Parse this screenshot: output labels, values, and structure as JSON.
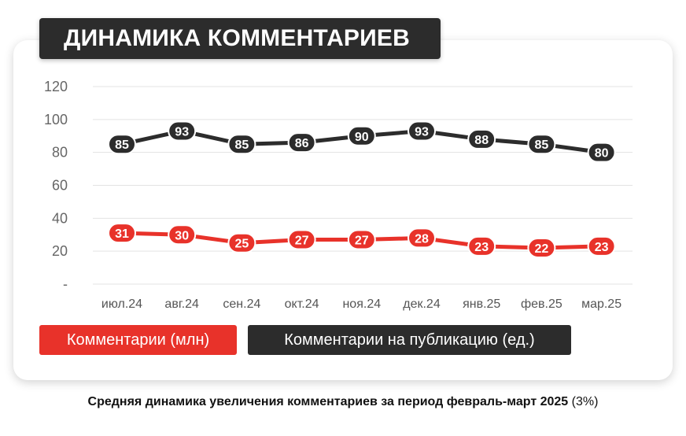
{
  "title": "ДИНАМИКА КОММЕНТАРИЕВ",
  "caption_bold": "Средняя динамика увеличения комментариев за период февраль-март 2025",
  "caption_rest": " (3%)",
  "colors": {
    "red": "#e8322a",
    "dark": "#2c2c2c"
  },
  "chart_data": {
    "type": "line",
    "categories": [
      "июл.24",
      "авг.24",
      "сен.24",
      "окт.24",
      "ноя.24",
      "дек.24",
      "янв.25",
      "фев.25",
      "мар.25"
    ],
    "y_tick_labels": [
      "-",
      "20",
      "40",
      "60",
      "80",
      "100",
      "120"
    ],
    "ylim": [
      0,
      120
    ],
    "grid": true,
    "legend_position": "bottom-left",
    "series": [
      {
        "name": "Комментарии на публикацию (ед.)",
        "color": "#2c2c2c",
        "values": [
          85,
          93,
          85,
          86,
          90,
          93,
          88,
          85,
          80
        ]
      },
      {
        "name": "Комментарии (млн)",
        "color": "#e8322a",
        "values": [
          31,
          30,
          25,
          27,
          27,
          28,
          23,
          22,
          23
        ]
      }
    ]
  }
}
